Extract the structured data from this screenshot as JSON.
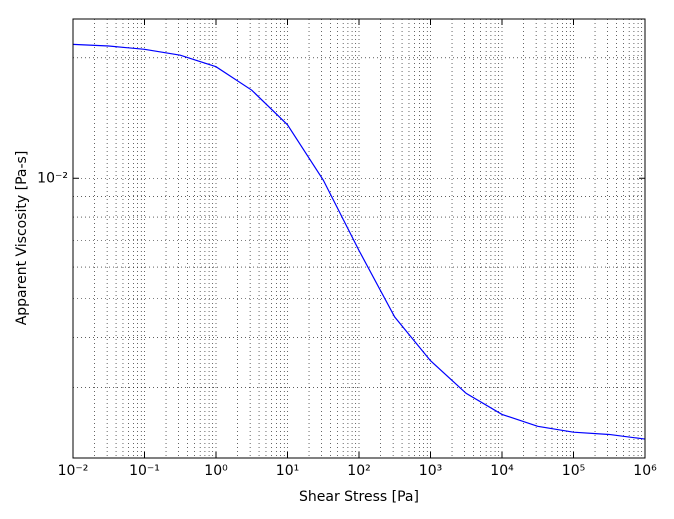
{
  "chart_data": {
    "type": "line",
    "xlabel": "Shear Stress [Pa]",
    "ylabel": "Apparent Viscosity [Pa-s]",
    "xscale": "log",
    "yscale": "log",
    "grid": true,
    "minor_grid": true,
    "xlim": [
      0.01,
      1000000
    ],
    "ylim": [
      0.002,
      0.025
    ],
    "xticks": [
      {
        "value": 0.01,
        "label": "10⁻²"
      },
      {
        "value": 0.1,
        "label": "10⁻¹"
      },
      {
        "value": 1,
        "label": "10⁰"
      },
      {
        "value": 10,
        "label": "10¹"
      },
      {
        "value": 100,
        "label": "10²"
      },
      {
        "value": 1000,
        "label": "10³"
      },
      {
        "value": 10000,
        "label": "10⁴"
      },
      {
        "value": 100000,
        "label": "10⁵"
      },
      {
        "value": 1000000,
        "label": "10⁶"
      }
    ],
    "yticks": [
      {
        "value": 0.01,
        "label": "10⁻²"
      }
    ],
    "x": [
      0.01,
      0.0316,
      0.1,
      0.316,
      1,
      3.16,
      10,
      31.6,
      100,
      316,
      1000,
      3160,
      10000,
      31600,
      100000,
      316000,
      1000000
    ],
    "series": [
      {
        "color": "#0000ff",
        "values": [
          0.0216,
          0.0214,
          0.021,
          0.0203,
          0.019,
          0.0166,
          0.0136,
          0.0099,
          0.0066,
          0.0045,
          0.0035,
          0.0029,
          0.00257,
          0.0024,
          0.00232,
          0.00229,
          0.00223
        ]
      }
    ]
  }
}
